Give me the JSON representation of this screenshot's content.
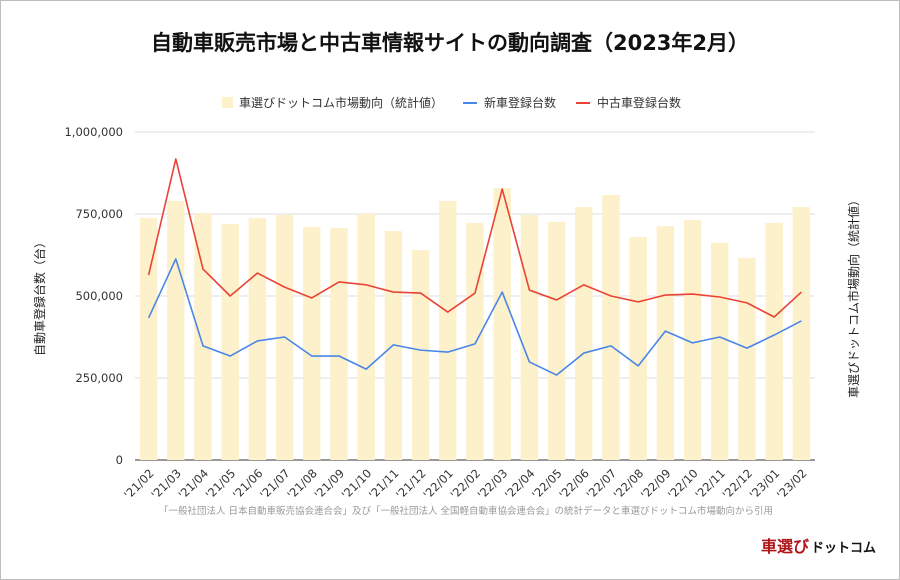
{
  "chart_data": {
    "type": "bar+line",
    "title": "自動車販売市場と中古車情報サイトの動向調査（2023年2月）",
    "ylabel": "自動車登録台数（台）",
    "y2label": "車選びドットコム市場動向（統計値）",
    "ylim": [
      0,
      1000000
    ],
    "yticks": [
      "0",
      "250,000",
      "500,000",
      "750,000",
      "1,000,000"
    ],
    "ytick_values": [
      0,
      250000,
      500000,
      750000,
      1000000
    ],
    "grid": true,
    "legend_position": "top",
    "categories": [
      "'21/02",
      "'21/03",
      "'21/04",
      "'21/05",
      "'21/06",
      "'21/07",
      "'21/08",
      "'21/09",
      "'21/10",
      "'21/11",
      "'21/12",
      "'22/01",
      "'22/02",
      "'22/03",
      "'22/04",
      "'22/05",
      "'22/06",
      "'22/07",
      "'22/08",
      "'22/09",
      "'22/10",
      "'22/11",
      "'22/12",
      "'23/01",
      "'23/02"
    ],
    "series": [
      {
        "name": "車選びドットコム市場動向（統計値）",
        "type": "bar",
        "color": "#fcf1cb",
        "values": [
          738000,
          790000,
          753000,
          720000,
          738000,
          747000,
          710000,
          707000,
          750000,
          698000,
          640000,
          790000,
          723000,
          829000,
          747000,
          726000,
          771000,
          808000,
          680000,
          713000,
          732000,
          662000,
          616000,
          723000,
          771000
        ]
      },
      {
        "name": "新車登録台数",
        "type": "line",
        "color": "#4a86e8",
        "values": [
          433000,
          613000,
          348000,
          317000,
          363000,
          375000,
          317000,
          317000,
          277000,
          351000,
          335000,
          329000,
          354000,
          512000,
          299000,
          259000,
          326000,
          348000,
          287000,
          393000,
          357000,
          375000,
          341000,
          381000,
          424000
        ]
      },
      {
        "name": "中古車登録台数",
        "type": "line",
        "color": "#ea4335",
        "values": [
          564000,
          918000,
          582000,
          500000,
          570000,
          527000,
          494000,
          543000,
          534000,
          512000,
          509000,
          451000,
          509000,
          826000,
          518000,
          488000,
          534000,
          500000,
          482000,
          503000,
          506000,
          497000,
          479000,
          436000,
          512000
        ]
      }
    ]
  },
  "footnote": "「一般社団法人 日本自動車販売協会連合会」及び「一般社団法人 全国軽自動車協会連合会」の統計データと車選びドットコム市場動向から引用",
  "logo": {
    "text_red": "車選び",
    "text_black": "ドットコム"
  }
}
